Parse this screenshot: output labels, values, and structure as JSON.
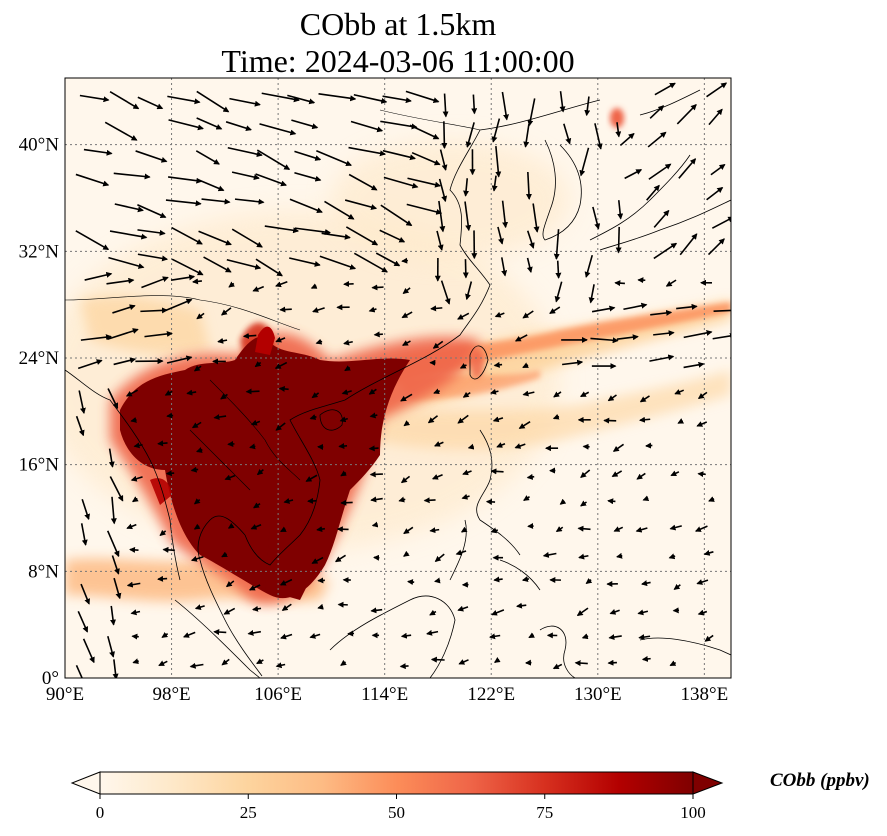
{
  "title": {
    "line1": "CObb at 1.5km",
    "line2": "Time: 2024-03-06 11:00:00"
  },
  "map": {
    "lon_range": [
      90,
      140
    ],
    "lat_range": [
      0,
      45
    ],
    "x_ticks": [
      "90°E",
      "98°E",
      "106°E",
      "114°E",
      "122°E",
      "130°E",
      "138°E"
    ],
    "x_tick_values": [
      90,
      98,
      106,
      114,
      122,
      130,
      138
    ],
    "y_ticks": [
      "0°",
      "8°N",
      "16°N",
      "24°N",
      "32°N",
      "40°N"
    ],
    "y_tick_values": [
      0,
      8,
      16,
      24,
      32,
      40
    ],
    "gridlines": true,
    "field": "CObb",
    "level": "1.5km",
    "high_concentration_region": "Indochina Peninsula and South China Sea (peak values ≥ 100 ppbv)"
  },
  "colorbar": {
    "label": "CObb (ppbv)",
    "ticks": [
      "0",
      "25",
      "50",
      "75",
      "100"
    ],
    "tick_values": [
      0,
      25,
      50,
      75,
      100
    ],
    "colormap": "OrRd",
    "colors": [
      "#fff7ec",
      "#fee8c8",
      "#fdd49e",
      "#fdbb84",
      "#fc8d59",
      "#ef6548",
      "#d7301f",
      "#b30000",
      "#7f0000"
    ],
    "extend": "both"
  }
}
